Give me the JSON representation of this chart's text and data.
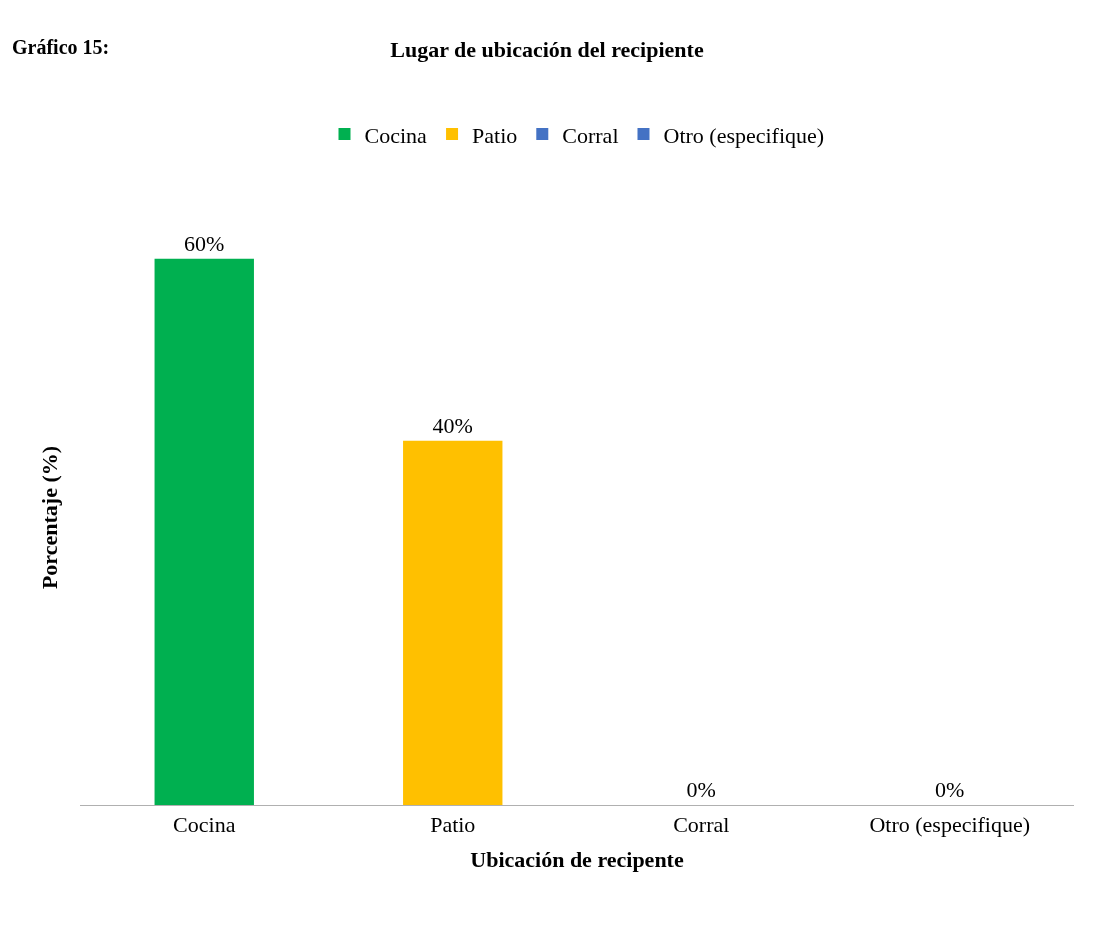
{
  "chart_data": {
    "type": "bar",
    "title": "Lugar de ubicación del recipiente",
    "xlabel": "Ubicación de recipente",
    "ylabel": "Porcentaje (%)",
    "annotations": [
      "Gráfico 15:"
    ],
    "categories": [
      "Cocina",
      "Patio",
      "Corral",
      "Otro (especifique)"
    ],
    "series": [
      {
        "name": "Cocina",
        "color": "#00b050",
        "values": [
          60,
          null,
          null,
          null
        ],
        "value_labels": [
          "60%",
          null,
          null,
          null
        ]
      },
      {
        "name": "Patio",
        "color": "#ffc000",
        "values": [
          null,
          40,
          null,
          null
        ],
        "value_labels": [
          null,
          "40%",
          null,
          null
        ]
      },
      {
        "name": "Corral",
        "color": "#4472c4",
        "values": [
          null,
          null,
          0,
          null
        ],
        "value_labels": [
          null,
          null,
          "0%",
          null
        ]
      },
      {
        "name": "Otro (especifique)",
        "color": "#4472c4",
        "values": [
          null,
          null,
          null,
          0
        ],
        "value_labels": [
          null,
          null,
          null,
          "0%"
        ]
      }
    ],
    "legend": "top"
  }
}
